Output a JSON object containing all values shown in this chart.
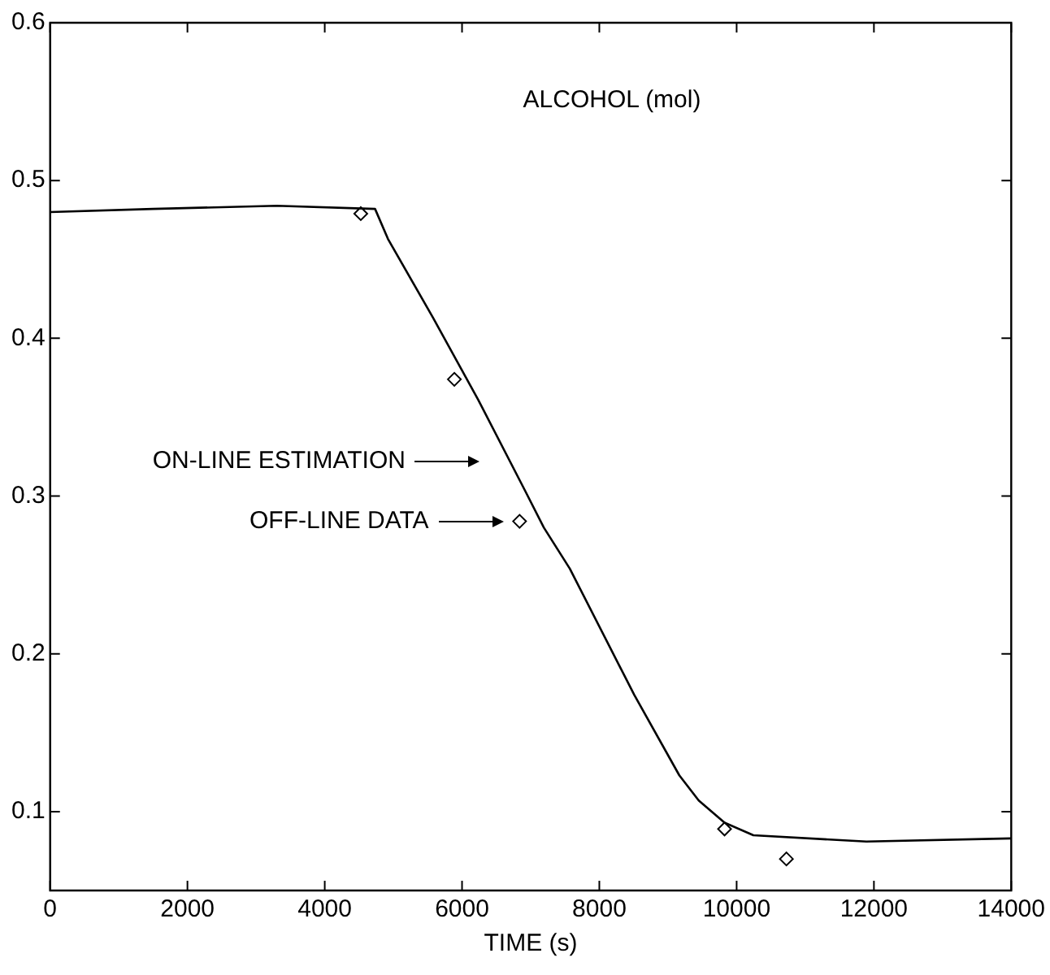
{
  "chart_data": {
    "type": "line",
    "title": "ALCOHOL (mol)",
    "xlabel": "TIME (s)",
    "series": [
      {
        "type": "line",
        "color": "#000000",
        "marker": "none",
        "x": [
          0,
          1500,
          3300,
          4733,
          4921,
          5578,
          6236,
          6911,
          7192,
          7570,
          8508,
          9165,
          9448,
          9824,
          10244,
          11890,
          14000
        ],
        "values": [
          0.48,
          0.482,
          0.484,
          0.482,
          0.463,
          0.413,
          0.361,
          0.304,
          0.28,
          0.254,
          0.174,
          0.123,
          0.107,
          0.093,
          0.085,
          0.081,
          0.083
        ]
      },
      {
        "type": "scatter",
        "color": "#000000",
        "marker": "diamond",
        "x": [
          4525,
          5888,
          6838,
          9824,
          10725
        ],
        "values": [
          0.479,
          0.374,
          0.284,
          0.089,
          0.07
        ]
      }
    ],
    "xlim": [
      0,
      14000
    ],
    "ylim": [
      0.05,
      0.6
    ],
    "xticks": [
      0,
      2000,
      4000,
      6000,
      8000,
      10000,
      12000,
      14000
    ],
    "yticks": [
      0.1,
      0.2,
      0.3,
      0.4,
      0.5,
      0.6
    ],
    "annotations": [
      "ON-LINE ESTIMATION",
      "OFF-LINE DATA"
    ]
  }
}
